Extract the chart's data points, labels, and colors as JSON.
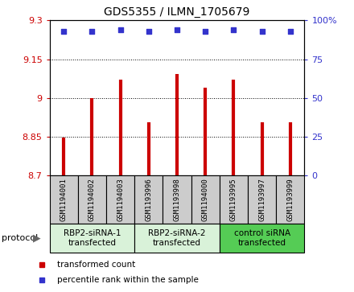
{
  "title": "GDS5355 / ILMN_1705679",
  "samples": [
    "GSM1194001",
    "GSM1194002",
    "GSM1194003",
    "GSM1193996",
    "GSM1193998",
    "GSM1194000",
    "GSM1193995",
    "GSM1193997",
    "GSM1193999"
  ],
  "bar_values": [
    8.845,
    9.0,
    9.07,
    8.905,
    9.092,
    9.04,
    9.07,
    8.905,
    8.905
  ],
  "percentile_values": [
    93,
    93,
    94,
    93,
    94,
    93,
    94,
    93,
    93
  ],
  "ylim": [
    8.7,
    9.3
  ],
  "yticks": [
    8.7,
    8.85,
    9.0,
    9.15,
    9.3
  ],
  "ytick_labels": [
    "8.7",
    "8.85",
    "9",
    "9.15",
    "9.3"
  ],
  "right_yticks": [
    0,
    25,
    50,
    75,
    100
  ],
  "right_ytick_labels": [
    "0",
    "25",
    "50",
    "75",
    "100%"
  ],
  "bar_color": "#cc0000",
  "dot_color": "#3333cc",
  "groups": [
    {
      "label": "RBP2-siRNA-1\ntransfected",
      "start": 0,
      "end": 3,
      "color": "#d9f2d9"
    },
    {
      "label": "RBP2-siRNA-2\ntransfected",
      "start": 3,
      "end": 6,
      "color": "#d9f2d9"
    },
    {
      "label": "control siRNA\ntransfected",
      "start": 6,
      "end": 9,
      "color": "#55cc55"
    }
  ],
  "legend_items": [
    {
      "color": "#cc0000",
      "label": "transformed count"
    },
    {
      "color": "#3333cc",
      "label": "percentile rank within the sample"
    }
  ],
  "protocol_label": "protocol",
  "sample_box_color": "#cccccc",
  "ylabel_left_color": "#cc0000",
  "ylabel_right_color": "#3333cc"
}
